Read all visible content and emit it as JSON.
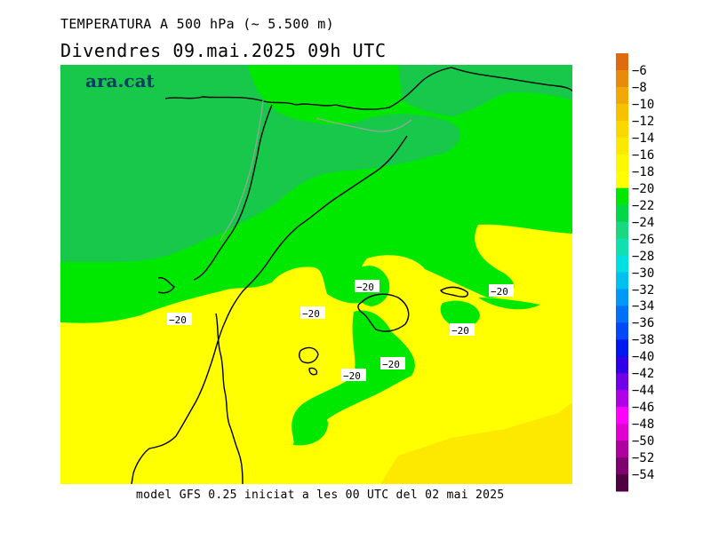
{
  "header": {
    "title": "TEMPERATURA A 500 hPa (~ 5.500 m)",
    "subtitle": "Divendres  09.mai.2025 09h UTC"
  },
  "brand": "ara.cat",
  "footer": "model GFS 0.25 iniciat a les 00 UTC del 02 mai 2025",
  "contour_label": "−20",
  "legend": {
    "labels": [
      "−6",
      "−8",
      "−10",
      "−12",
      "−14",
      "−16",
      "−18",
      "−20",
      "−22",
      "−24",
      "−26",
      "−28",
      "−30",
      "−32",
      "−34",
      "−36",
      "−38",
      "−40",
      "−42",
      "−44",
      "−46",
      "−48",
      "−50",
      "−52",
      "−54"
    ],
    "colors": [
      "#e06a10",
      "#ea8a0a",
      "#f2a806",
      "#f7c000",
      "#fbd800",
      "#fde800",
      "#fcf800",
      "#ffff00",
      "#00e800",
      "#00d848",
      "#18d880",
      "#10e0b0",
      "#00e0e0",
      "#00c0f0",
      "#0098f8",
      "#0070f8",
      "#0048f8",
      "#0018f0",
      "#3000e8",
      "#7000e8",
      "#b000e8",
      "#ff00ff",
      "#e000d0",
      "#b000a0",
      "#800070",
      "#500040"
    ]
  },
  "map": {
    "colors": {
      "yellow": "#ffff00",
      "dark_yellow": "#fde800",
      "green": "#00e800",
      "mid_green": "#00d848",
      "dark_green": "#18c84a",
      "border": "#000000",
      "admin_border": "#a0a0a0"
    }
  }
}
